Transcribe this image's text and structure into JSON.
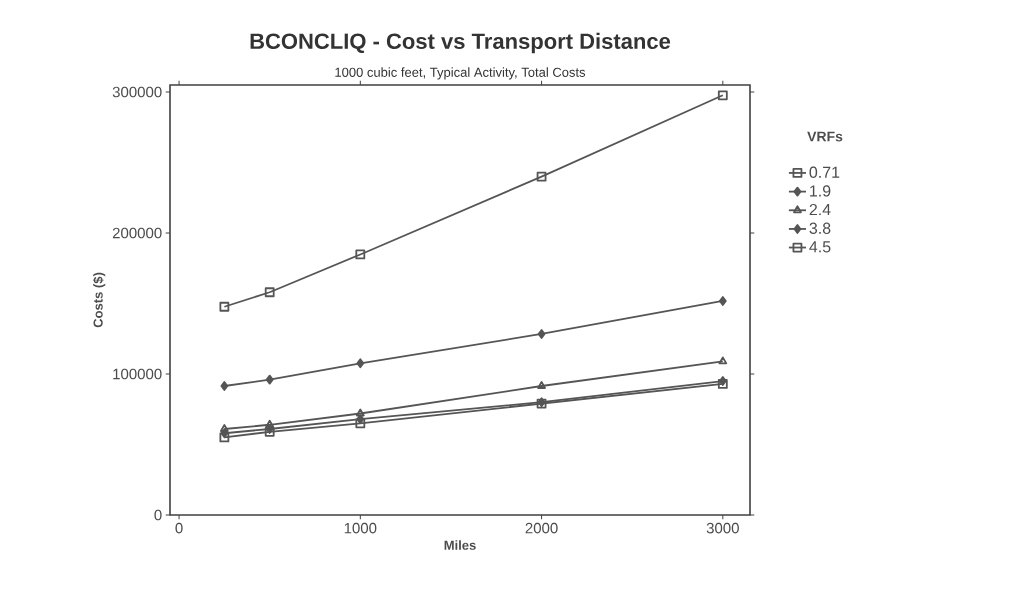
{
  "chart_data": {
    "type": "line",
    "title": "BCONCLIQ - Cost vs Transport Distance",
    "subtitle": "1000 cubic feet, Typical Activity, Total Costs",
    "xlabel": "Miles",
    "ylabel": "Costs  ($)",
    "legend_title": "VRFs",
    "x": [
      250,
      500,
      1000,
      2000,
      3000
    ],
    "series": [
      {
        "name": "0.71",
        "color": "#555555",
        "marker": "square",
        "values": [
          147700,
          158000,
          184800,
          240000,
          297700
        ]
      },
      {
        "name": "1.9",
        "color": "#555555",
        "marker": "diamond",
        "values": [
          91500,
          96000,
          107600,
          128400,
          151800
        ]
      },
      {
        "name": "2.4",
        "color": "#555555",
        "marker": "triangle",
        "values": [
          61000,
          64000,
          72000,
          91500,
          109000
        ]
      },
      {
        "name": "3.8",
        "color": "#555555",
        "marker": "diamond",
        "values": [
          58000,
          61000,
          68000,
          80000,
          95000
        ]
      },
      {
        "name": "4.5",
        "color": "#555555",
        "marker": "square",
        "values": [
          55000,
          59000,
          65000,
          79000,
          93000
        ]
      }
    ],
    "xlim": [
      -50,
      3150
    ],
    "ylim": [
      0,
      305000
    ],
    "xticks": [
      0,
      1000,
      2000,
      3000
    ],
    "yticks": [
      0,
      100000,
      200000,
      300000
    ],
    "legend": "right",
    "grid": false,
    "line_style": "solid"
  }
}
